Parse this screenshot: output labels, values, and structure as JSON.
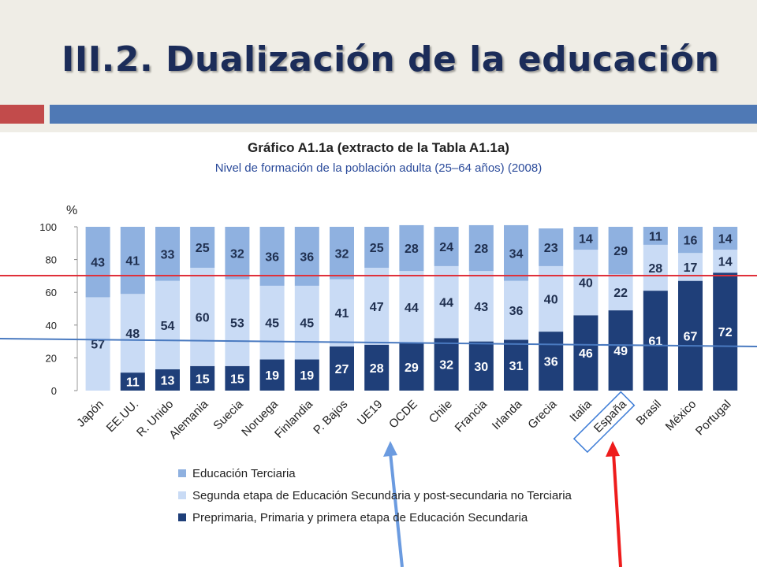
{
  "slide": {
    "title": "III.2. Dualización de la educación"
  },
  "colors": {
    "terciaria": "#8fb1e0",
    "secundaria2": "#c9dbf5",
    "primaria": "#1f3f79",
    "red_line": "#e0303a",
    "blue_line": "#4a7ac0"
  },
  "chart_data": {
    "type": "bar",
    "stacked": true,
    "title": "Gráfico A1.1a (extracto de la Tabla A1.1a)",
    "subtitle": "Nivel de formación de la población adulta (25–64 años) (2008)",
    "ylabel": "%",
    "ylim": [
      0,
      100
    ],
    "yticks": [
      "0",
      "20",
      "40",
      "60",
      "80",
      "100"
    ],
    "categories": [
      "Japón",
      "EE.UU.",
      "R. Unido",
      "Alemania",
      "Suecia",
      "Noruega",
      "Finlandia",
      "P. Bajos",
      "UE19",
      "OCDE",
      "Chile",
      "Francia",
      "Irlanda",
      "Grecia",
      "Italia",
      "España",
      "Brasil",
      "México",
      "Portugal"
    ],
    "series": [
      {
        "name": "Preprimaria, Primaria y primera etapa de Educación Secundaria",
        "values": [
          0,
          11,
          13,
          15,
          15,
          19,
          19,
          27,
          28,
          29,
          32,
          30,
          31,
          36,
          46,
          49,
          61,
          67,
          72
        ]
      },
      {
        "name": "Segunda etapa de Educación Secundaria y post-secundaria no Terciaria",
        "values": [
          57,
          48,
          54,
          60,
          53,
          45,
          45,
          41,
          47,
          44,
          44,
          43,
          36,
          40,
          40,
          22,
          28,
          17,
          14
        ]
      },
      {
        "name": "Educación Terciaria",
        "values": [
          43,
          41,
          33,
          25,
          32,
          36,
          36,
          32,
          25,
          28,
          24,
          28,
          34,
          23,
          14,
          29,
          11,
          16,
          14
        ]
      }
    ],
    "highlighted_category": "España",
    "legend_position": "bottom"
  }
}
